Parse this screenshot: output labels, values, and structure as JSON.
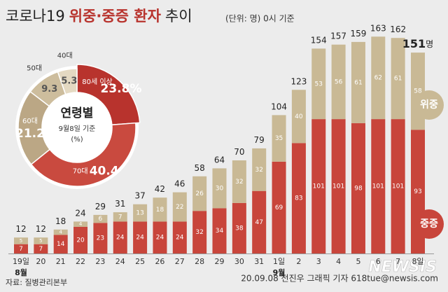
{
  "chart_data": [
    {
      "type": "bar",
      "title": [
        "코로나19",
        "위중·중증 환자",
        "추이"
      ],
      "subtitle": "(단위: 명) 0시 기준",
      "categories": [
        "19일",
        "20",
        "21",
        "22",
        "23",
        "24",
        "25",
        "26",
        "27",
        "28",
        "29",
        "30",
        "31",
        "1일",
        "2",
        "3",
        "4",
        "5",
        "6",
        "7",
        "8일"
      ],
      "month_labels": [
        "8월",
        "9월"
      ],
      "series": [
        {
          "name": "중증",
          "color": "#c8453b",
          "values": [
            7,
            7,
            14,
            20,
            23,
            24,
            24,
            24,
            24,
            32,
            34,
            38,
            47,
            69,
            83,
            101,
            101,
            98,
            101,
            101,
            93
          ]
        },
        {
          "name": "위중",
          "color": "#c9b995",
          "values": [
            5,
            5,
            4,
            4,
            6,
            7,
            13,
            18,
            22,
            26,
            30,
            32,
            32,
            35,
            40,
            53,
            56,
            61,
            62,
            61,
            58
          ]
        }
      ],
      "totals": [
        12,
        12,
        18,
        24,
        29,
        31,
        37,
        42,
        46,
        58,
        64,
        70,
        79,
        104,
        123,
        154,
        157,
        159,
        163,
        162,
        151
      ],
      "total_unit": "명",
      "stacked": true
    },
    {
      "type": "pie",
      "title": "연령별",
      "subtitle": "9월8일 기준",
      "unit_note": "(%)",
      "categories": [
        "80세 이상",
        "70대",
        "60대",
        "50대",
        "40대"
      ],
      "values": [
        23.8,
        40.4,
        21.2,
        9.3,
        5.3
      ],
      "value_labels": [
        "23.8%",
        "40.4",
        "21.2",
        "9.3",
        "5.3"
      ],
      "colors": [
        "#b8332d",
        "#c94a3f",
        "#bba785",
        "#cdbd9d",
        "#e4d9c2"
      ],
      "donut": true
    }
  ],
  "footer": {
    "source": "자료: 질병관리본부",
    "credit": "20.09.08 전진우 그래픽 기자 618tue@newsis.com",
    "logo": "NEWSIS"
  }
}
